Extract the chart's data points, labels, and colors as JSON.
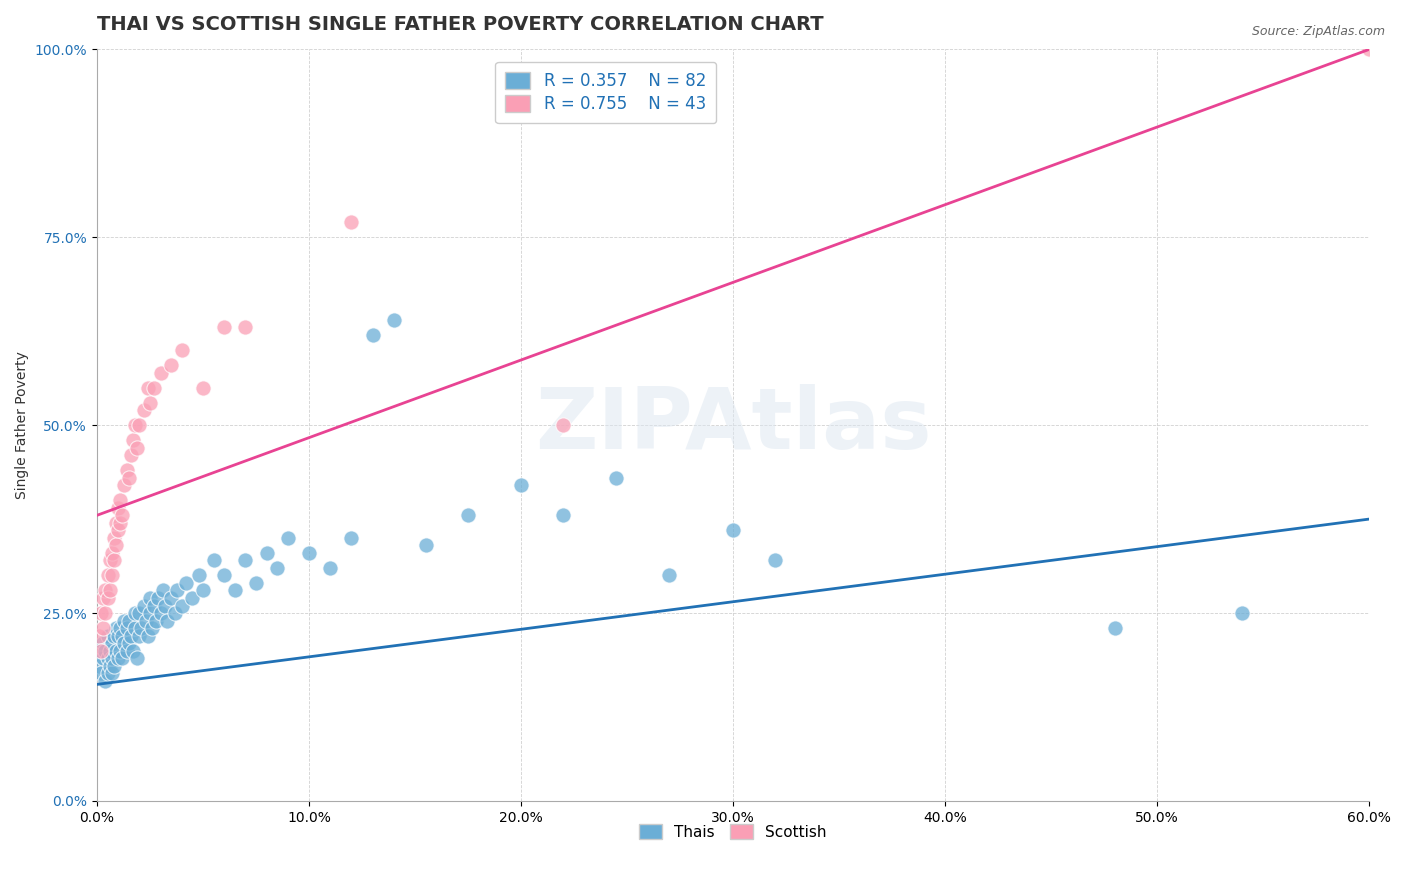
{
  "title": "THAI VS SCOTTISH SINGLE FATHER POVERTY CORRELATION CHART",
  "source": "Source: ZipAtlas.com",
  "ylabel_label": "Single Father Poverty",
  "x_min": 0.0,
  "x_max": 0.6,
  "y_min": 0.0,
  "y_max": 1.0,
  "x_ticks": [
    0.0,
    0.1,
    0.2,
    0.3,
    0.4,
    0.5,
    0.6
  ],
  "x_tick_labels": [
    "0.0%",
    "10.0%",
    "20.0%",
    "30.0%",
    "40.0%",
    "50.0%",
    "60.0%"
  ],
  "y_ticks": [
    0.0,
    0.25,
    0.5,
    0.75,
    1.0
  ],
  "y_tick_labels": [
    "0.0%",
    "25.0%",
    "50.0%",
    "75.0%",
    "100.0%"
  ],
  "thai_R": 0.357,
  "thai_N": 82,
  "scottish_R": 0.755,
  "scottish_N": 43,
  "thai_color": "#6baed6",
  "scottish_color": "#fa9fb5",
  "thai_line_color": "#2171b5",
  "scottish_line_color": "#e84393",
  "background_color": "#ffffff",
  "watermark": "ZIPAtlas",
  "title_fontsize": 14,
  "axis_label_fontsize": 10,
  "tick_label_fontsize": 10,
  "legend_fontsize": 12,
  "thai_scatter_x": [
    0.001,
    0.002,
    0.003,
    0.003,
    0.004,
    0.004,
    0.005,
    0.005,
    0.005,
    0.006,
    0.006,
    0.007,
    0.007,
    0.007,
    0.008,
    0.008,
    0.009,
    0.009,
    0.01,
    0.01,
    0.011,
    0.011,
    0.012,
    0.012,
    0.013,
    0.013,
    0.014,
    0.014,
    0.015,
    0.015,
    0.016,
    0.017,
    0.018,
    0.018,
    0.019,
    0.02,
    0.02,
    0.021,
    0.022,
    0.023,
    0.024,
    0.025,
    0.025,
    0.026,
    0.027,
    0.028,
    0.029,
    0.03,
    0.031,
    0.032,
    0.033,
    0.035,
    0.037,
    0.038,
    0.04,
    0.042,
    0.045,
    0.048,
    0.05,
    0.055,
    0.06,
    0.065,
    0.07,
    0.075,
    0.08,
    0.085,
    0.09,
    0.1,
    0.11,
    0.12,
    0.13,
    0.14,
    0.155,
    0.175,
    0.2,
    0.22,
    0.245,
    0.27,
    0.3,
    0.32,
    0.48,
    0.54
  ],
  "thai_scatter_y": [
    0.18,
    0.17,
    0.19,
    0.21,
    0.16,
    0.2,
    0.17,
    0.19,
    0.22,
    0.18,
    0.2,
    0.17,
    0.19,
    0.21,
    0.18,
    0.22,
    0.2,
    0.23,
    0.19,
    0.22,
    0.2,
    0.23,
    0.19,
    0.22,
    0.21,
    0.24,
    0.2,
    0.23,
    0.21,
    0.24,
    0.22,
    0.2,
    0.23,
    0.25,
    0.19,
    0.22,
    0.25,
    0.23,
    0.26,
    0.24,
    0.22,
    0.25,
    0.27,
    0.23,
    0.26,
    0.24,
    0.27,
    0.25,
    0.28,
    0.26,
    0.24,
    0.27,
    0.25,
    0.28,
    0.26,
    0.29,
    0.27,
    0.3,
    0.28,
    0.32,
    0.3,
    0.28,
    0.32,
    0.29,
    0.33,
    0.31,
    0.35,
    0.33,
    0.31,
    0.35,
    0.62,
    0.64,
    0.34,
    0.38,
    0.42,
    0.38,
    0.43,
    0.3,
    0.36,
    0.32,
    0.23,
    0.25
  ],
  "scottish_scatter_x": [
    0.001,
    0.002,
    0.002,
    0.003,
    0.003,
    0.004,
    0.004,
    0.005,
    0.005,
    0.006,
    0.006,
    0.007,
    0.007,
    0.008,
    0.008,
    0.009,
    0.009,
    0.01,
    0.01,
    0.011,
    0.011,
    0.012,
    0.013,
    0.014,
    0.015,
    0.016,
    0.017,
    0.018,
    0.019,
    0.02,
    0.022,
    0.024,
    0.025,
    0.027,
    0.03,
    0.035,
    0.04,
    0.05,
    0.06,
    0.07,
    0.12,
    0.22,
    0.6
  ],
  "scottish_scatter_y": [
    0.22,
    0.2,
    0.25,
    0.23,
    0.27,
    0.25,
    0.28,
    0.27,
    0.3,
    0.28,
    0.32,
    0.3,
    0.33,
    0.32,
    0.35,
    0.34,
    0.37,
    0.36,
    0.39,
    0.37,
    0.4,
    0.38,
    0.42,
    0.44,
    0.43,
    0.46,
    0.48,
    0.5,
    0.47,
    0.5,
    0.52,
    0.55,
    0.53,
    0.55,
    0.57,
    0.58,
    0.6,
    0.55,
    0.63,
    0.63,
    0.77,
    0.5,
    1.0
  ],
  "thai_trend_x": [
    0.0,
    0.6
  ],
  "thai_trend_y": [
    0.155,
    0.375
  ],
  "scottish_trend_x": [
    0.0,
    0.6
  ],
  "scottish_trend_y": [
    0.38,
    1.0
  ]
}
